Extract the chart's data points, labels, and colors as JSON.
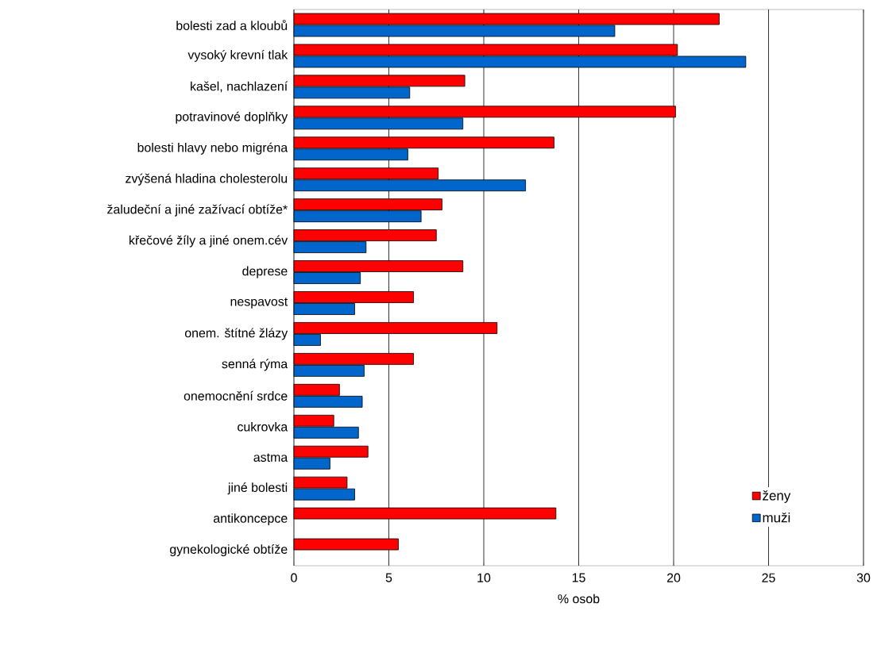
{
  "chart_data": {
    "type": "bar",
    "orientation": "horizontal",
    "xlabel": "% osob",
    "categories": [
      "bolesti zad a kloubů",
      "vysoký krevní tlak",
      "kašel, nachlazení",
      "potravinové doplňky",
      "bolesti hlavy nebo migréna",
      "zvýšená hladina cholesterolu",
      "žaludeční a jiné zažívací obtíže*",
      "křečové žíly a jiné onem.cév",
      "deprese",
      "nespavost",
      "onem. štítné žlázy",
      "senná rýma",
      "onemocnění srdce",
      "cukrovka",
      "astma",
      "jiné bolesti",
      "antikoncepce",
      "gynekologické obtíže"
    ],
    "series": [
      {
        "name": "ženy",
        "color": "#ff0000",
        "values": [
          22.4,
          20.2,
          9.0,
          20.1,
          13.7,
          7.6,
          7.8,
          7.5,
          8.9,
          6.3,
          10.7,
          6.3,
          2.4,
          2.1,
          3.9,
          2.8,
          13.8,
          5.5
        ]
      },
      {
        "name": "muži",
        "color": "#0066cc",
        "values": [
          16.9,
          23.8,
          6.1,
          8.9,
          6.0,
          12.2,
          6.7,
          3.8,
          3.5,
          3.2,
          1.4,
          3.7,
          3.6,
          3.4,
          1.9,
          3.2,
          null,
          null
        ]
      }
    ],
    "xlim": [
      0,
      30
    ],
    "xticks": [
      0,
      5,
      10,
      15,
      20,
      25,
      30
    ],
    "grid": "x",
    "legend": "bottom right"
  }
}
